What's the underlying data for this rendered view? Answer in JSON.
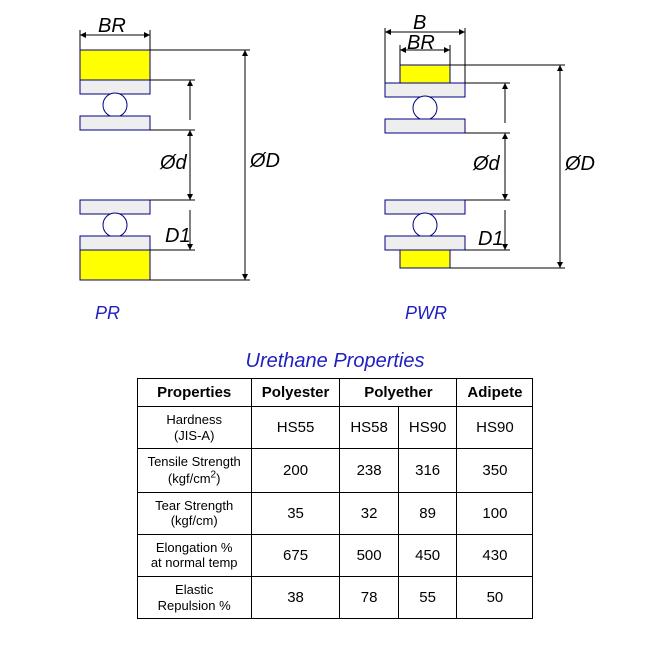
{
  "diagrams": {
    "left": {
      "name": "PR",
      "labels": {
        "BR": "BR",
        "d": "Ød",
        "D": "ØD",
        "D1": "D1"
      },
      "colors": {
        "tire": "#ffff00",
        "outline": "#000080",
        "arrow": "#000000"
      }
    },
    "right": {
      "name": "PWR",
      "labels": {
        "B": "B",
        "BR": "BR",
        "d": "Ød",
        "D": "ØD",
        "D1": "D1"
      },
      "colors": {
        "tire": "#ffff00",
        "outline": "#000080",
        "arrow": "#000000"
      }
    }
  },
  "table": {
    "title": "Urethane Properties",
    "headers": [
      "Properties",
      "Polyester",
      "Polyether",
      "Polyether",
      "Adipete"
    ],
    "polyether_span": 2,
    "rows": [
      {
        "name": "Hardness\n(JIS-A)",
        "vals": [
          "HS55",
          "HS58",
          "HS90",
          "HS90"
        ]
      },
      {
        "name": "Tensile Strength\n(kgf/cm²)",
        "vals": [
          "200",
          "238",
          "316",
          "350"
        ]
      },
      {
        "name": "Tear Strength\n(kgf/cm)",
        "vals": [
          "35",
          "32",
          "89",
          "100"
        ]
      },
      {
        "name": "Elongation %\nat normal temp",
        "vals": [
          "675",
          "500",
          "450",
          "430"
        ]
      },
      {
        "name": "Elastic\nRepulsion %",
        "vals": [
          "38",
          "78",
          "55",
          "50"
        ]
      }
    ],
    "border_color": "#000000",
    "text_color": "#000000"
  }
}
